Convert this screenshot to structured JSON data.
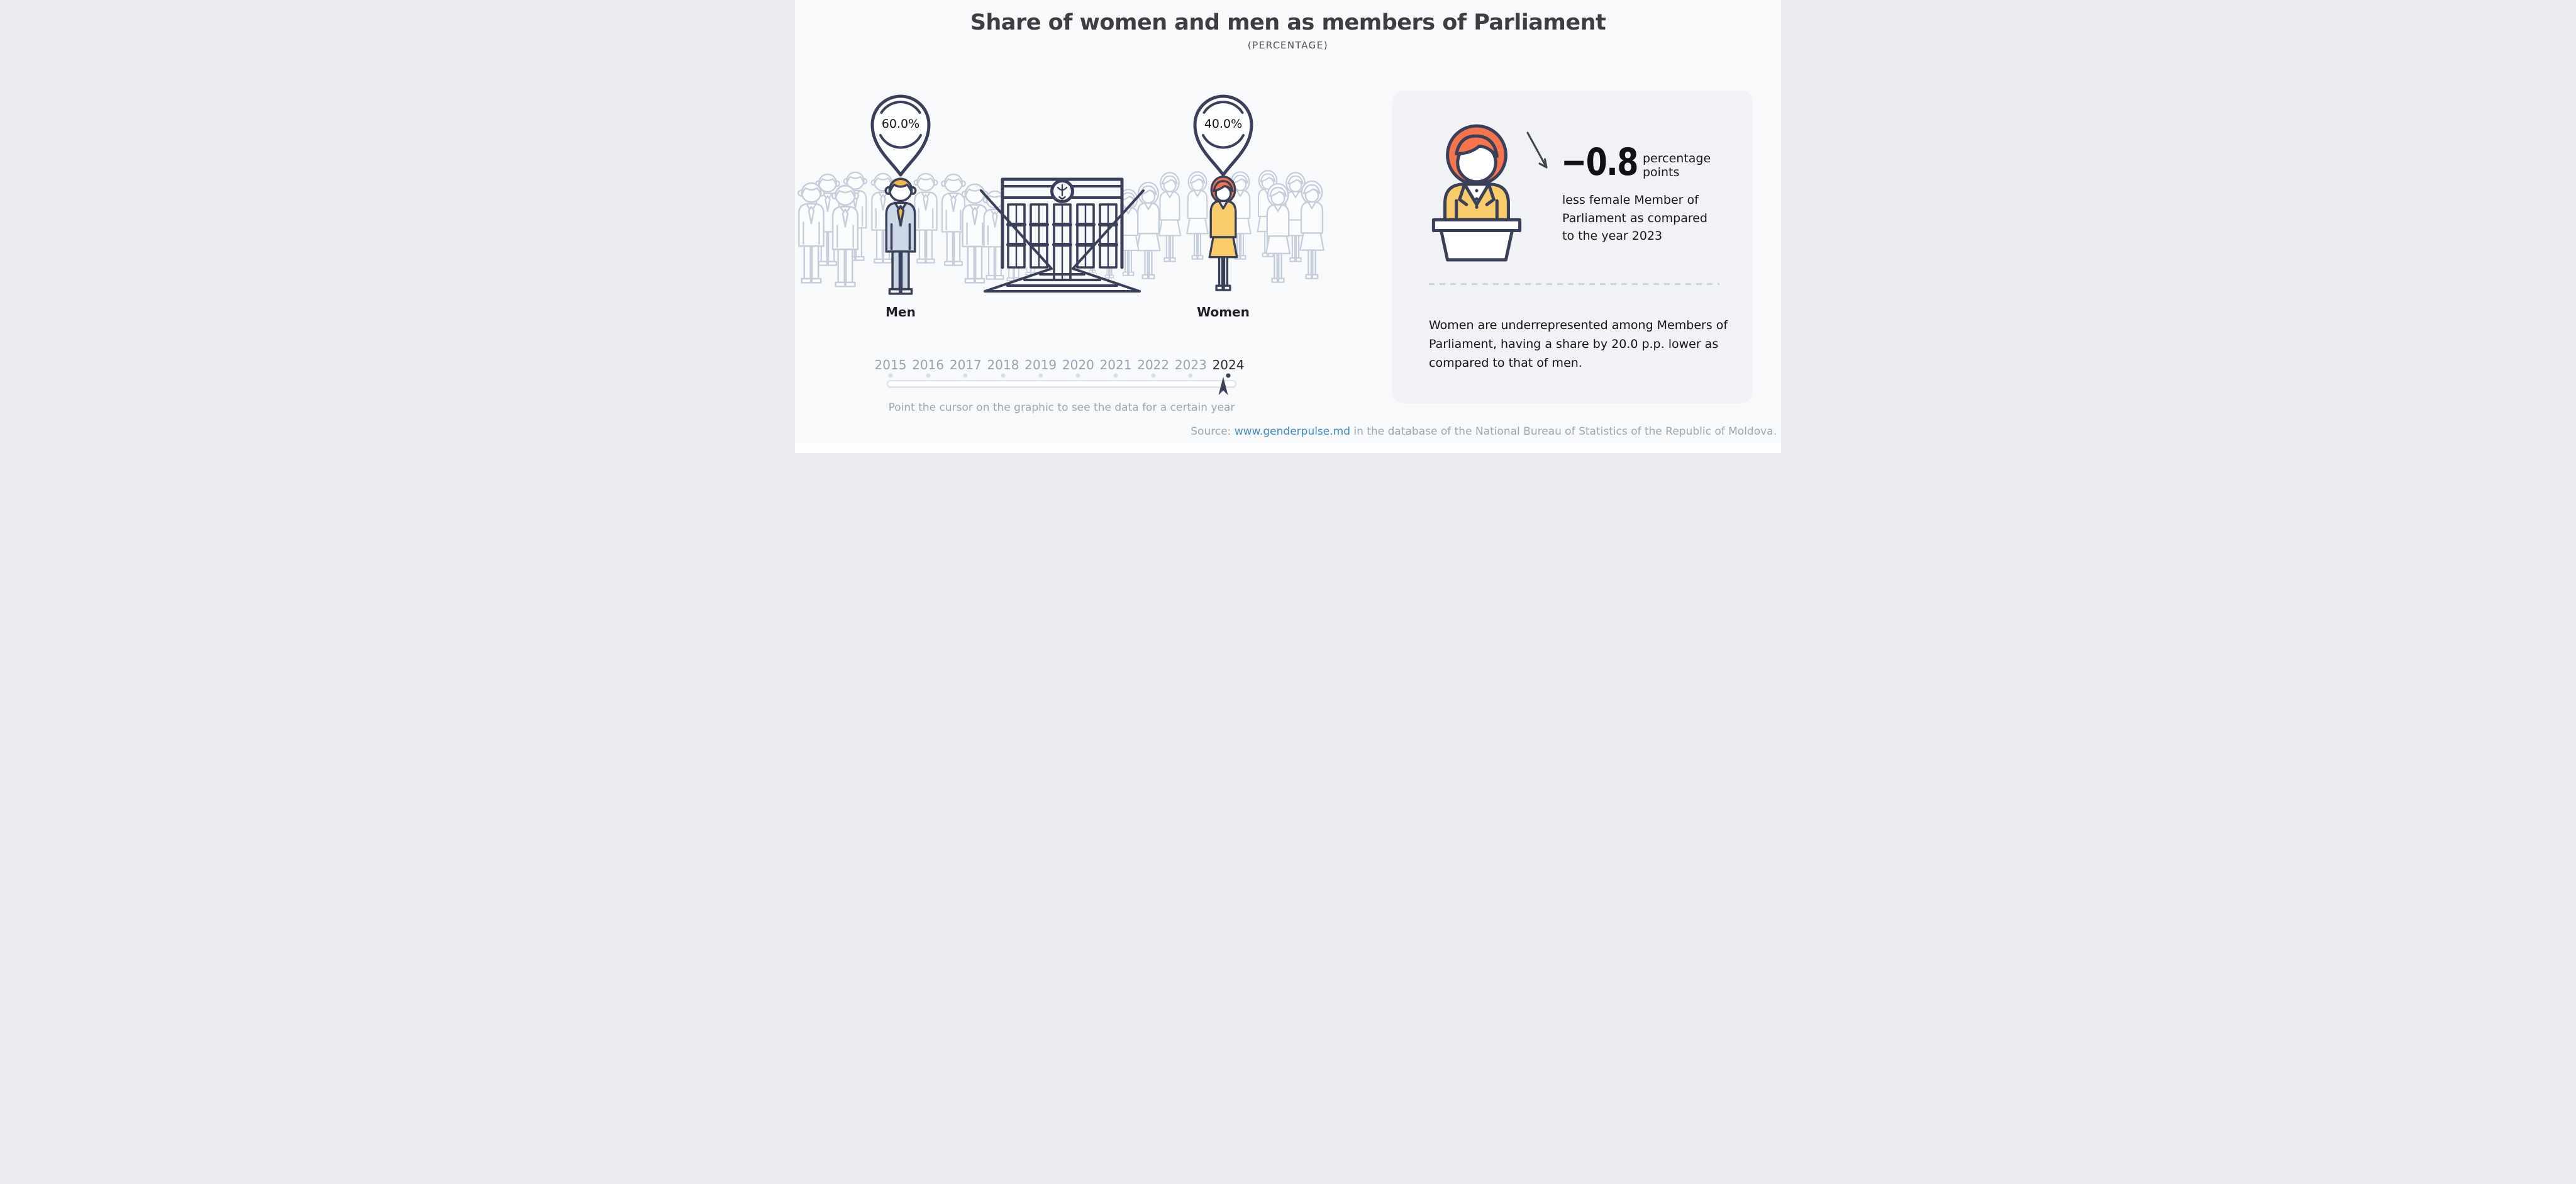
{
  "header": {
    "title": "Share of women and men as members of Parliament",
    "subtitle": "(PERCENTAGE)"
  },
  "groups": {
    "men": {
      "label": "Men",
      "share": "60.0%"
    },
    "women": {
      "label": "Women",
      "share": "40.0%"
    }
  },
  "stats_panel": {
    "delta_value": "−0.8",
    "delta_unit": "percentage points",
    "delta_description": "less female Member of Parliament as compared to the year 2023",
    "summary": "Women are underrepresented among Members of Parliament, having a share by 20.0 p.p. lower as compared to that of men."
  },
  "timeline": {
    "years": [
      "2015",
      "2016",
      "2017",
      "2018",
      "2019",
      "2020",
      "2021",
      "2022",
      "2023",
      "2024"
    ],
    "active_year": "2024",
    "hint": "Point the cursor on the graphic to see the data for a certain year"
  },
  "source": {
    "prefix": "Source: ",
    "link": "www.genderpulse.md",
    "suffix": " in the database of the National Bureau of Statistics of the Republic of Moldova."
  },
  "icons": {
    "men_marker": "map-pin-icon",
    "women_marker": "map-pin-icon",
    "building": "parliament-building-icon",
    "speaker": "woman-at-podium-icon",
    "trend": "down-right-arrow-icon",
    "cursor": "slider-cursor-icon"
  },
  "colors": {
    "background": "#f8f9fb",
    "panel_background": "#f0f2f5",
    "outline_navy": "#3a4059",
    "crowd_gray": "#c5cedb",
    "man_suit_blue": "#ccd7e6",
    "accent_yellow": "#f8cc6b",
    "hair_yellow": "#f2b84d",
    "accent_orange": "#f5744c",
    "year_gray": "#98a2b3",
    "active_year_dark": "#2c2e33",
    "muted_text": "#9ca6b2",
    "link_blue": "#4288c4"
  },
  "chart_data": {
    "type": "bar",
    "variant": "pictogram-infographic",
    "title": "Share of women and men as members of Parliament",
    "subtitle": "(PERCENTAGE)",
    "categories": [
      "Men",
      "Women"
    ],
    "values": [
      60.0,
      40.0
    ],
    "unit": "%",
    "selected_year": 2024,
    "timeline_years": [
      2015,
      2016,
      2017,
      2018,
      2019,
      2020,
      2021,
      2022,
      2023,
      2024
    ],
    "annotations": {
      "female_change_vs_2023_pp": -0.8,
      "female_vs_male_gap_pp": -20.0
    },
    "legend_position": "none",
    "grid": false
  }
}
